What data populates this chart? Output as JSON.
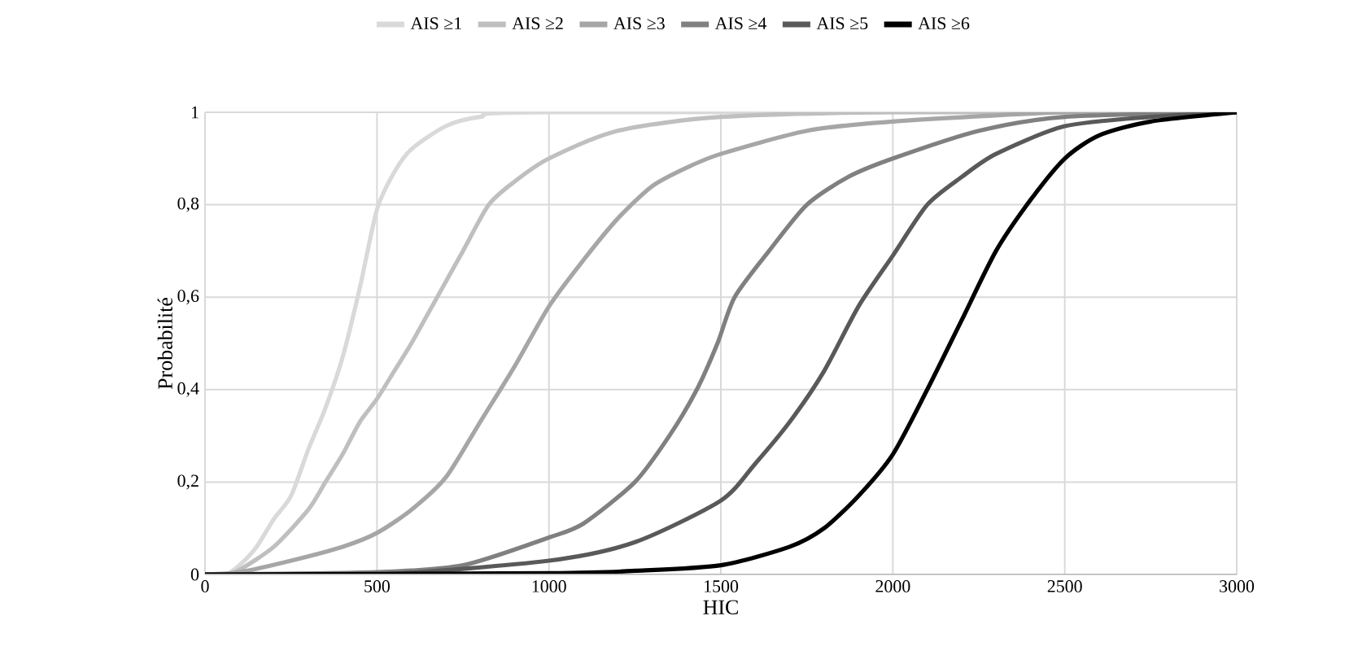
{
  "chart_data": {
    "type": "line",
    "xlabel": "HIC",
    "ylabel": "Probabilité",
    "xlim": [
      0,
      3000
    ],
    "xticks": [
      0,
      500,
      1000,
      1500,
      2000,
      2500,
      3000
    ],
    "ylim": [
      0,
      1
    ],
    "yticks": [
      0,
      {
        "value": 0.2,
        "label": "0,2"
      },
      {
        "value": 0.4,
        "label": "0,4"
      },
      {
        "value": 0.6,
        "label": "0,6"
      },
      {
        "value": 0.8,
        "label": "0,8"
      },
      1
    ],
    "grid": true,
    "legend": "top",
    "marker": "none",
    "line_style": "solid",
    "series": [
      {
        "name": "AIS ≥1",
        "color": "#d9d9d9",
        "x": [
          0,
          60,
          100,
          150,
          200,
          250,
          300,
          350,
          400,
          450,
          500,
          550,
          600,
          700,
          800,
          1000,
          3000
        ],
        "values": [
          0,
          0,
          0.02,
          0.06,
          0.12,
          0.17,
          0.27,
          0.36,
          0.47,
          0.62,
          0.79,
          0.87,
          0.92,
          0.97,
          0.99,
          1,
          1
        ]
      },
      {
        "name": "AIS ≥2",
        "color": "#bfbfbf",
        "x": [
          0,
          60,
          100,
          200,
          300,
          350,
          400,
          450,
          500,
          550,
          600,
          675,
          750,
          825,
          900,
          1000,
          1200,
          1500,
          2000,
          3000
        ],
        "values": [
          0,
          0,
          0.01,
          0.06,
          0.14,
          0.2,
          0.26,
          0.33,
          0.38,
          0.44,
          0.5,
          0.6,
          0.7,
          0.8,
          0.85,
          0.9,
          0.96,
          0.99,
          1,
          1
        ]
      },
      {
        "name": "AIS ≥3",
        "color": "#a6a6a6",
        "x": [
          0,
          100,
          250,
          400,
          500,
          600,
          700,
          800,
          900,
          1000,
          1100,
          1200,
          1300,
          1400,
          1500,
          1750,
          2000,
          2500,
          3000
        ],
        "values": [
          0,
          0.005,
          0.03,
          0.06,
          0.09,
          0.14,
          0.21,
          0.33,
          0.45,
          0.58,
          0.68,
          0.77,
          0.84,
          0.88,
          0.91,
          0.96,
          0.98,
          1,
          1
        ]
      },
      {
        "name": "AIS ≥4",
        "color": "#808080",
        "x": [
          0,
          500,
          750,
          1000,
          1100,
          1250,
          1350,
          1430,
          1490,
          1540,
          1640,
          1750,
          1870,
          2000,
          2250,
          2500,
          3000
        ],
        "values": [
          0,
          0.005,
          0.02,
          0.08,
          0.11,
          0.2,
          0.3,
          0.4,
          0.5,
          0.6,
          0.7,
          0.8,
          0.86,
          0.9,
          0.96,
          0.99,
          1
        ]
      },
      {
        "name": "AIS ≥5",
        "color": "#595959",
        "x": [
          0,
          500,
          1000,
          1250,
          1500,
          1600,
          1700,
          1800,
          1900,
          2000,
          2100,
          2200,
          2300,
          2500,
          2750,
          3000
        ],
        "values": [
          0,
          0,
          0.03,
          0.07,
          0.16,
          0.24,
          0.33,
          0.44,
          0.58,
          0.69,
          0.8,
          0.86,
          0.91,
          0.97,
          0.99,
          1
        ]
      },
      {
        "name": "AIS ≥6",
        "color": "#000000",
        "x": [
          0,
          1000,
          1250,
          1500,
          1700,
          1800,
          1900,
          2000,
          2100,
          2200,
          2300,
          2400,
          2500,
          2600,
          2750,
          3000
        ],
        "values": [
          0,
          0.003,
          0.008,
          0.02,
          0.06,
          0.1,
          0.17,
          0.26,
          0.4,
          0.55,
          0.7,
          0.81,
          0.9,
          0.95,
          0.98,
          1
        ]
      }
    ]
  }
}
